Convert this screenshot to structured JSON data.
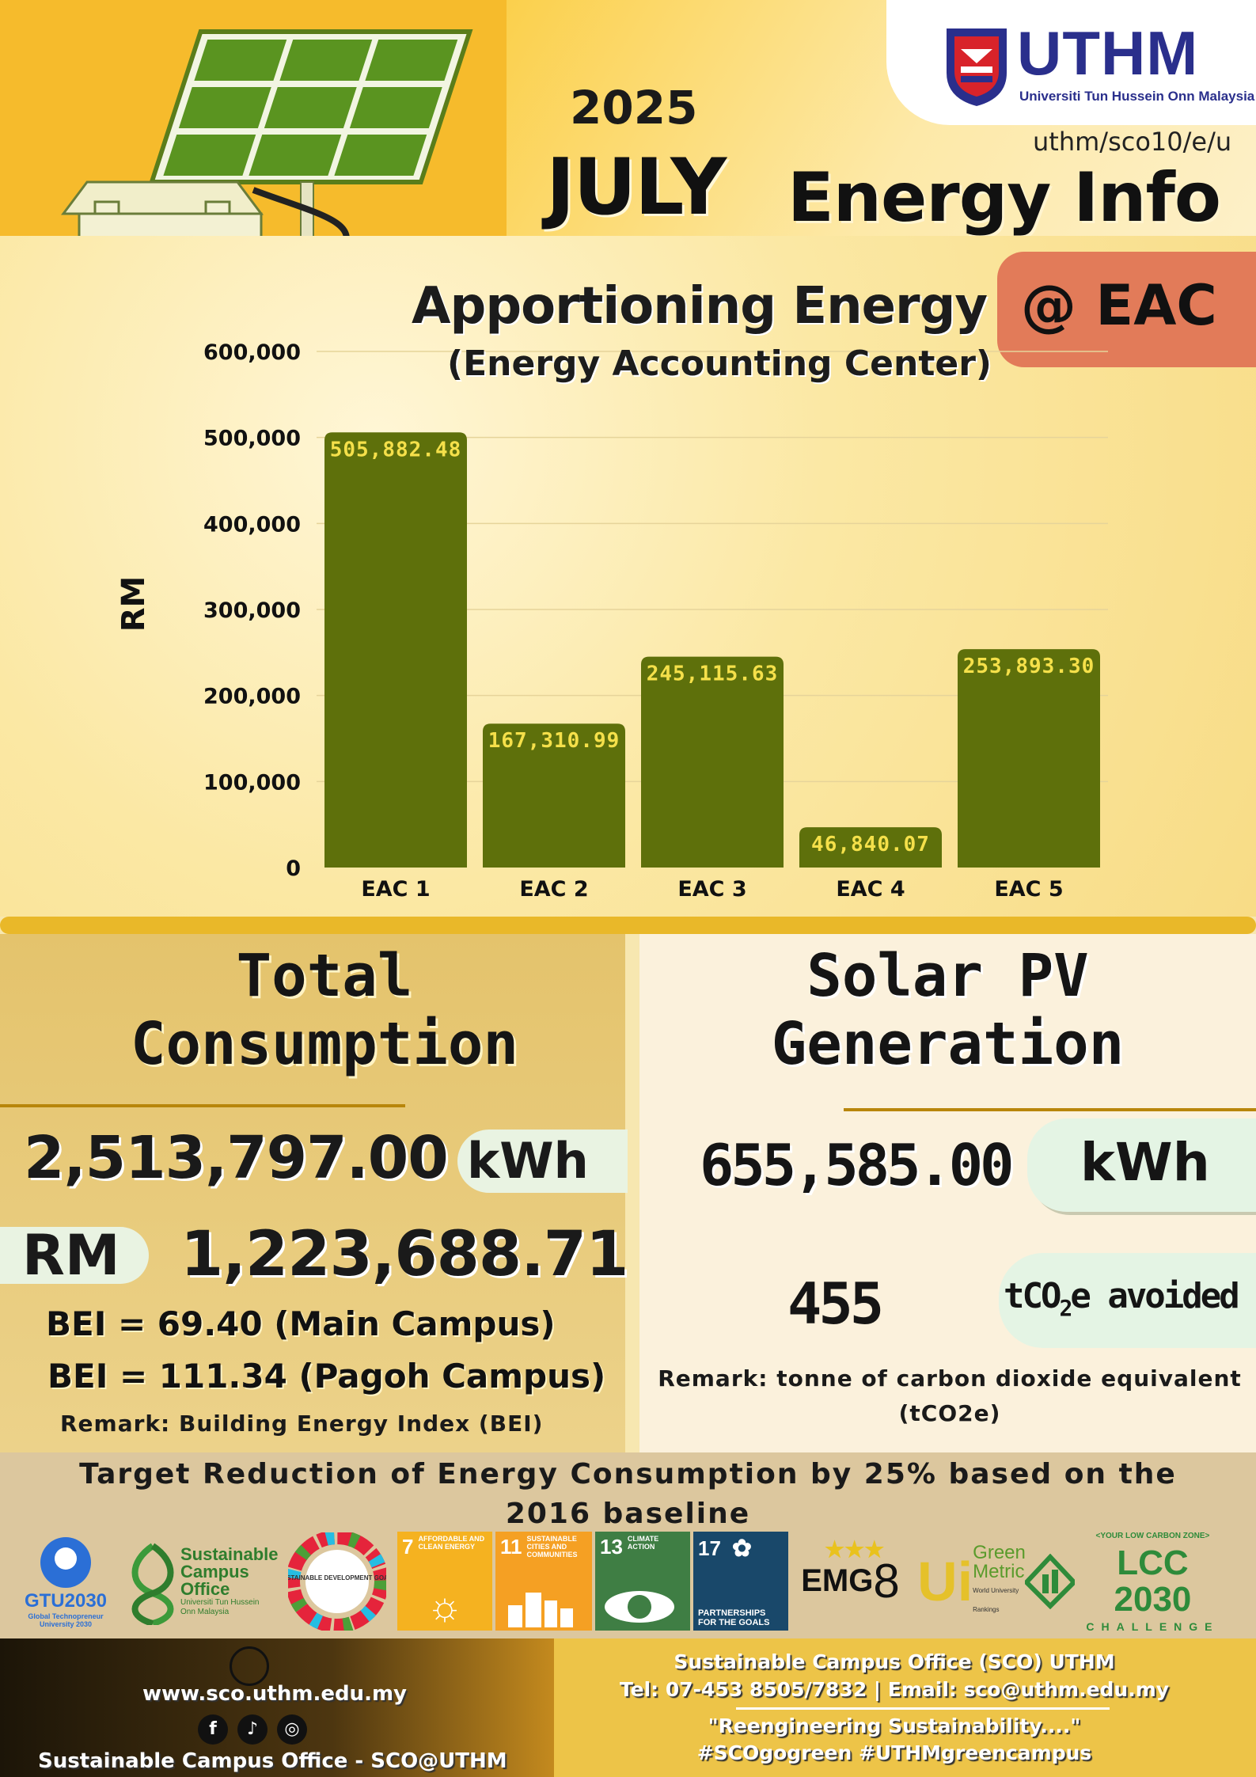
{
  "header": {
    "year": "2025",
    "month": "JULY",
    "code": "uthm/sco10/e/u",
    "title": "Energy Info",
    "org_logo_text": "UTHM",
    "org_logo_subtitle": "Universiti Tun Hussein Onn Malaysia"
  },
  "chart_section": {
    "title": "Apportioning Energy",
    "subtitle": "(Energy Accounting Center)",
    "tag": "@ EAC"
  },
  "chart_data": {
    "type": "bar",
    "title": "Apportioning Energy",
    "subtitle": "(Energy Accounting Center)",
    "ylabel": "RM",
    "xlabel": "",
    "ylim": [
      0,
      600000
    ],
    "yticks": [
      "0",
      "100,000",
      "200,000",
      "300,000",
      "400,000",
      "500,000",
      "600,000"
    ],
    "categories": [
      "EAC 1",
      "EAC 2",
      "EAC 3",
      "EAC 4",
      "EAC 5"
    ],
    "values": [
      505882.48,
      167310.99,
      245115.63,
      46840.07,
      253893.3
    ],
    "data_labels": [
      "505,882.48",
      "167,310.99",
      "245,115.63",
      "46,840.07",
      "253,893.30"
    ],
    "bar_color": "#5e700b",
    "label_color": "#f5e04a",
    "grid": true
  },
  "total_consumption": {
    "title_line1": "Total",
    "title_line2": "Consumption",
    "kwh_value": "2,513,797.00",
    "kwh_unit": "kWh",
    "rm_label": "RM",
    "rm_value": "1,223,688.71",
    "bei_main": "BEI = 69.40 (Main Campus)",
    "bei_pagoh": "BEI =  111.34 (Pagoh Campus)",
    "remark": "Remark: Building Energy Index (BEI)"
  },
  "solar_pv": {
    "title_line1": "Solar PV",
    "title_line2": "Generation",
    "kwh_value": "655,585.00",
    "kwh_unit": "kWh",
    "co2_value": "455",
    "co2_unit_prefix": "tCO",
    "co2_unit_sub": "2",
    "co2_unit_suffix": "e avoided",
    "remark": "Remark: tonne of carbon dioxide equivalent (tCO2e)"
  },
  "target": {
    "text": "Target Reduction of Energy Consumption by 25% based on the 2016 baseline"
  },
  "partner_logos": {
    "gtu": "GTU2030",
    "gtu_sub": "Global Technopreneur University 2030",
    "sco_line1": "Sustainable",
    "sco_line2": "Campus",
    "sco_line3": "Office",
    "sco_sub": "Universiti Tun Hussein Onn Malaysia",
    "sdg_wheel": "SUSTAINABLE DEVELOPMENT GOALS",
    "sdg7_num": "7",
    "sdg7_label": "AFFORDABLE AND CLEAN ENERGY",
    "sdg11_num": "11",
    "sdg11_label": "SUSTAINABLE CITIES AND COMMUNITIES",
    "sdg13_num": "13",
    "sdg13_label": "CLIMATE ACTION",
    "sdg17_num": "17",
    "sdg17_label": "PARTNERSHIPS FOR THE GOALS",
    "emg": "EMG",
    "greenmetric_line1": "Green",
    "greenmetric_line2": "Metric",
    "greenmetric_sub": "World University Rankings",
    "lcc_top": "<YOUR LOW CARBON ZONE>",
    "lcc_main": "LCC 2030",
    "lcc_sub": "CHALLENGE",
    "colors": {
      "sdg7": "#f5b220",
      "sdg11": "#f5a023",
      "sdg13": "#3f7e44",
      "sdg17": "#19486a"
    }
  },
  "footer": {
    "website": "www.sco.uthm.edu.my",
    "social_name": "Sustainable Campus Office - SCO@UTHM",
    "office": "Sustainable Campus Office (SCO) UTHM",
    "contact": "Tel: 07-453 8505/7832 | Email: sco@uthm.edu.my",
    "slogan": "\"Reengineering Sustainability....\"",
    "hashtags": "#SCOgogreen #UTHMgreencampus",
    "social_icons": [
      "facebook-icon",
      "tiktok-icon",
      "instagram-icon"
    ]
  }
}
